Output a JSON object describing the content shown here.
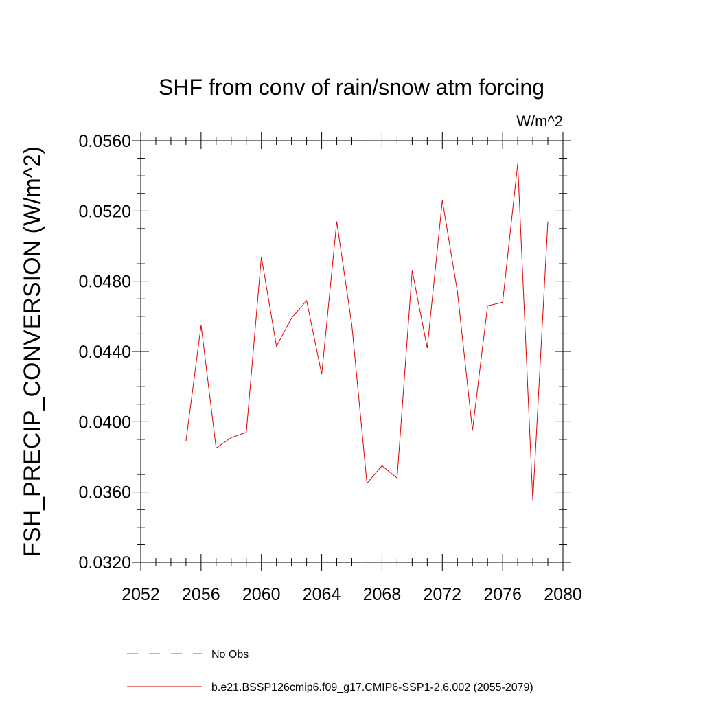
{
  "chart_data": {
    "type": "line",
    "title": "SHF from conv of rain/snow atm forcing",
    "units_label": "W/m^2",
    "xlabel": "",
    "ylabel": "FSH_PRECIP_CONVERSION  (W/m^2)",
    "xlim": [
      2052,
      2080
    ],
    "ylim": [
      0.032,
      0.056
    ],
    "x_ticks": [
      "2052",
      "2056",
      "2060",
      "2064",
      "2068",
      "2072",
      "2076",
      "2080"
    ],
    "y_ticks": [
      "0.0320",
      "0.0360",
      "0.0400",
      "0.0440",
      "0.0480",
      "0.0520",
      "0.0560"
    ],
    "grid": false,
    "legend_position": "bottom",
    "colors": {
      "model": "#e00000",
      "obs": "#6a5acd"
    },
    "series": [
      {
        "name": "b.e21.BSSP126cmip6.f09_g17.CMIP6-SSP1-2.6.002 (2055-2079)",
        "x": [
          2055,
          2056,
          2057,
          2058,
          2059,
          2060,
          2061,
          2062,
          2063,
          2064,
          2065,
          2066,
          2067,
          2068,
          2069,
          2070,
          2071,
          2072,
          2073,
          2074,
          2075,
          2076,
          2077,
          2078,
          2079
        ],
        "values": [
          0.0389,
          0.0455,
          0.0385,
          0.0391,
          0.0394,
          0.0494,
          0.0443,
          0.0459,
          0.0469,
          0.0427,
          0.0514,
          0.0455,
          0.0365,
          0.0375,
          0.0368,
          0.0486,
          0.0442,
          0.0526,
          0.0474,
          0.0395,
          0.0466,
          0.0468,
          0.0547,
          0.0355,
          0.0514
        ]
      }
    ],
    "legend": [
      {
        "label": "No Obs",
        "style": "dashed",
        "color_key": "obs"
      },
      {
        "label": "b.e21.BSSP126cmip6.f09_g17.CMIP6-SSP1-2.6.002 (2055-2079)",
        "style": "solid",
        "color_key": "model"
      }
    ]
  }
}
